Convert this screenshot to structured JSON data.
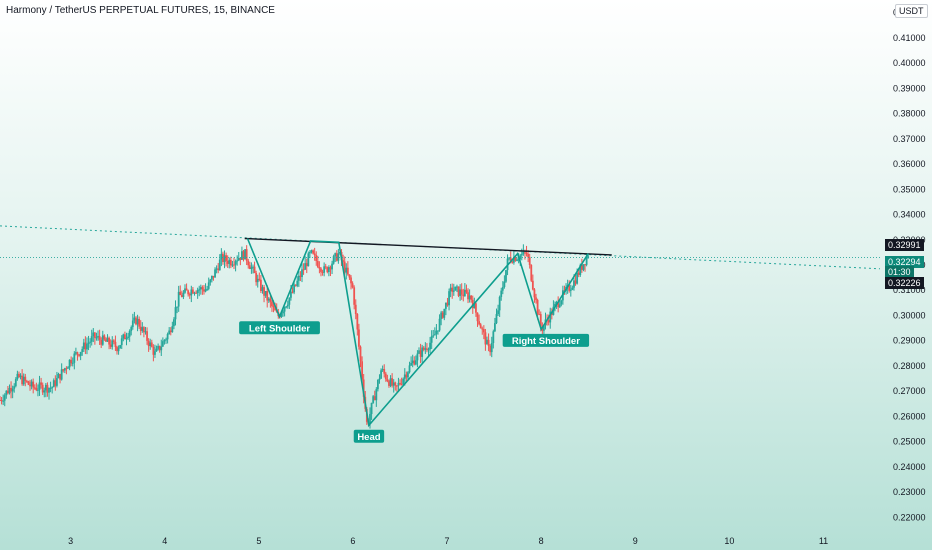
{
  "header": {
    "title": "Harmony / TetherUS PERPETUAL FUTURES, 15, BINANCE",
    "unit": "USDT"
  },
  "price_tags": {
    "neckline": "0.32991",
    "last": "0.32294",
    "countdown": "01:30",
    "low": "0.32226"
  },
  "colors": {
    "up": "#26a69a",
    "down": "#ef5350",
    "pattern": "#0e9e8e",
    "neckline": "#131722",
    "label_bg": "#0e9e8e"
  },
  "chart_data": {
    "type": "candlestick",
    "title": "Harmony / TetherUS PERPETUAL FUTURES, 15, BINANCE",
    "ylim": [
      0.215,
      0.425
    ],
    "xlim": [
      2.25,
      11.6
    ],
    "y_ticks": [
      "0.22000",
      "0.23000",
      "0.24000",
      "0.25000",
      "0.26000",
      "0.27000",
      "0.28000",
      "0.29000",
      "0.30000",
      "0.31000",
      "0.32000",
      "0.33000",
      "0.34000",
      "0.35000",
      "0.36000",
      "0.37000",
      "0.38000",
      "0.39000",
      "0.40000",
      "0.41000",
      "0.42000"
    ],
    "x_ticks": [
      "3",
      "4",
      "5",
      "6",
      "7",
      "8",
      "9",
      "10",
      "11"
    ],
    "price_path": [
      [
        2.25,
        0.2665
      ],
      [
        2.45,
        0.2755
      ],
      [
        2.6,
        0.2715
      ],
      [
        2.8,
        0.2715
      ],
      [
        3.0,
        0.2825
      ],
      [
        3.25,
        0.2915
      ],
      [
        3.5,
        0.2875
      ],
      [
        3.7,
        0.2985
      ],
      [
        3.9,
        0.2845
      ],
      [
        4.05,
        0.2935
      ],
      [
        4.15,
        0.3075
      ],
      [
        4.3,
        0.3105
      ],
      [
        4.45,
        0.3105
      ],
      [
        4.6,
        0.3225
      ],
      [
        4.7,
        0.3215
      ],
      [
        4.85,
        0.3245
      ],
      [
        5.0,
        0.3125
      ],
      [
        5.2,
        0.2995
      ],
      [
        5.35,
        0.3085
      ],
      [
        5.55,
        0.3245
      ],
      [
        5.7,
        0.3175
      ],
      [
        5.85,
        0.3245
      ],
      [
        6.0,
        0.3105
      ],
      [
        6.15,
        0.2565
      ],
      [
        6.3,
        0.2785
      ],
      [
        6.45,
        0.2705
      ],
      [
        6.65,
        0.2825
      ],
      [
        6.85,
        0.2905
      ],
      [
        7.05,
        0.3105
      ],
      [
        7.25,
        0.3075
      ],
      [
        7.45,
        0.2855
      ],
      [
        7.65,
        0.3225
      ],
      [
        7.85,
        0.3245
      ],
      [
        8.0,
        0.2945
      ],
      [
        8.2,
        0.3065
      ],
      [
        8.35,
        0.3135
      ],
      [
        8.5,
        0.3245
      ]
    ],
    "pattern": {
      "points": [
        [
          4.88,
          0.3305
        ],
        [
          5.22,
          0.2995
        ],
        [
          5.55,
          0.3295
        ],
        [
          5.85,
          0.329
        ],
        [
          6.17,
          0.2565
        ],
        [
          7.75,
          0.3245
        ],
        [
          8.0,
          0.2945
        ],
        [
          8.5,
          0.3245
        ]
      ],
      "labels": [
        {
          "text": "Left Shoulder",
          "x": 5.22,
          "y": 0.2985
        },
        {
          "text": "Head",
          "x": 6.17,
          "y": 0.2555
        },
        {
          "text": "Right Shoulder",
          "x": 8.05,
          "y": 0.2935
        }
      ]
    },
    "neckline": {
      "solid": [
        [
          4.85,
          0.3305
        ],
        [
          8.75,
          0.324
        ]
      ],
      "dotted_from": [
        2.25,
        0.3355
      ],
      "dotted_to": [
        11.6,
        0.3185
      ]
    },
    "last_price": 0.32294
  }
}
